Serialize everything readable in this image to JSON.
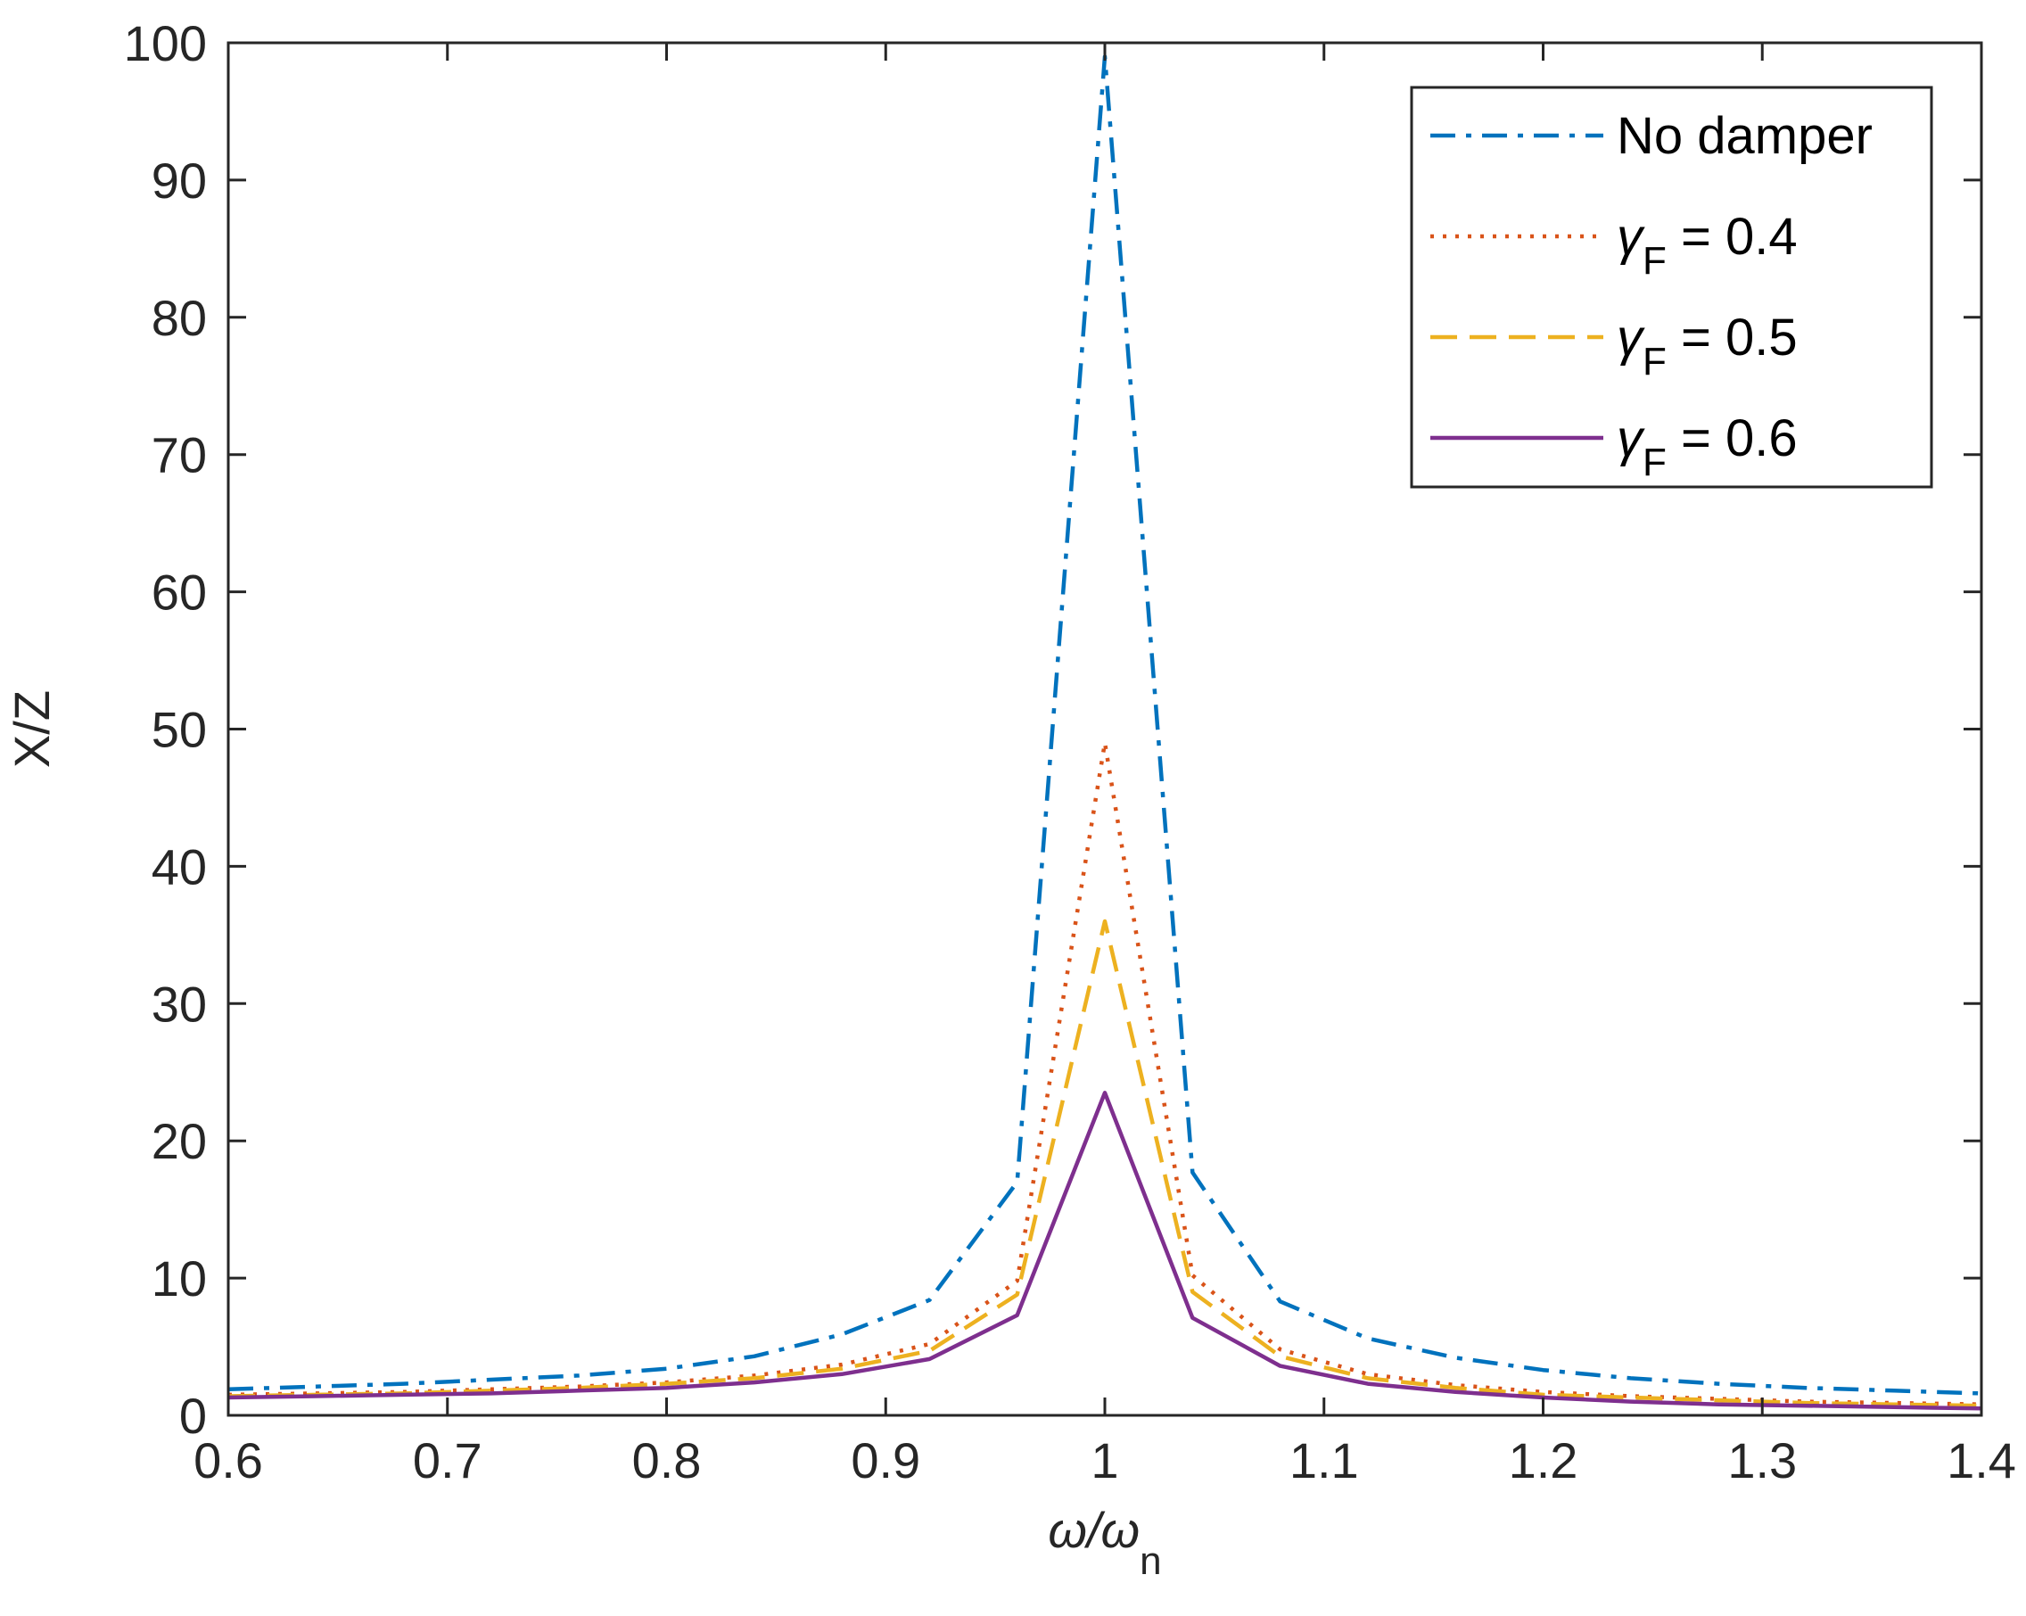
{
  "chart_data": {
    "type": "line",
    "title": "",
    "xlabel": {
      "main": "ω/ω",
      "sub": "n"
    },
    "ylabel": "X/Z",
    "xlim": [
      0.6,
      1.4
    ],
    "ylim": [
      0,
      100
    ],
    "xticks": [
      0.6,
      0.7,
      0.8,
      0.9,
      1.0,
      1.1,
      1.2,
      1.3,
      1.4
    ],
    "xtick_labels": [
      "0.6",
      "0.7",
      "0.8",
      "0.9",
      "1",
      "1.1",
      "1.2",
      "1.3",
      "1.4"
    ],
    "yticks": [
      0,
      10,
      20,
      30,
      40,
      50,
      60,
      70,
      80,
      90,
      100
    ],
    "ytick_labels": [
      "0",
      "10",
      "20",
      "30",
      "40",
      "50",
      "60",
      "70",
      "80",
      "90",
      "100"
    ],
    "grid": false,
    "legend_position": "top-right",
    "x": [
      0.6,
      0.64,
      0.68,
      0.72,
      0.76,
      0.8,
      0.84,
      0.88,
      0.92,
      0.96,
      1.0,
      1.04,
      1.08,
      1.12,
      1.16,
      1.2,
      1.24,
      1.28,
      1.32,
      1.36,
      1.4
    ],
    "series": [
      {
        "name": "No damper",
        "legend_main": "No damper",
        "legend_sub": "",
        "legend_suffix": "",
        "color": "#0072BD",
        "dash": "28,12,6,12",
        "values": [
          1.9,
          2.1,
          2.3,
          2.6,
          2.9,
          3.4,
          4.3,
          5.9,
          8.4,
          17.0,
          99.0,
          17.7,
          8.3,
          5.6,
          4.2,
          3.3,
          2.7,
          2.3,
          2.0,
          1.8,
          1.6
        ]
      },
      {
        "name": "γF = 0.4",
        "legend_main": "γ",
        "legend_sub": "F",
        "legend_suffix": " = 0.4",
        "color": "#D95319",
        "dash": "4,10",
        "values": [
          1.5,
          1.6,
          1.7,
          1.9,
          2.1,
          2.4,
          2.9,
          3.7,
          5.2,
          9.8,
          49.0,
          10.2,
          4.8,
          3.0,
          2.2,
          1.7,
          1.4,
          1.2,
          1.0,
          0.9,
          0.8
        ]
      },
      {
        "name": "γF = 0.5",
        "legend_main": "γ",
        "legend_sub": "F",
        "legend_suffix": " = 0.5",
        "color": "#EDB120",
        "dash": "30,14",
        "values": [
          1.4,
          1.5,
          1.6,
          1.8,
          2.0,
          2.3,
          2.7,
          3.4,
          4.7,
          8.8,
          36.0,
          9.0,
          4.3,
          2.7,
          2.0,
          1.5,
          1.3,
          1.1,
          0.9,
          0.8,
          0.7
        ]
      },
      {
        "name": "γF = 0.6",
        "legend_main": "γ",
        "legend_sub": "F",
        "legend_suffix": " = 0.6",
        "color": "#7E2F8E",
        "dash": "",
        "values": [
          1.3,
          1.4,
          1.5,
          1.6,
          1.8,
          2.0,
          2.4,
          3.0,
          4.1,
          7.3,
          23.5,
          7.1,
          3.6,
          2.3,
          1.7,
          1.3,
          1.0,
          0.8,
          0.7,
          0.6,
          0.5
        ]
      }
    ]
  }
}
